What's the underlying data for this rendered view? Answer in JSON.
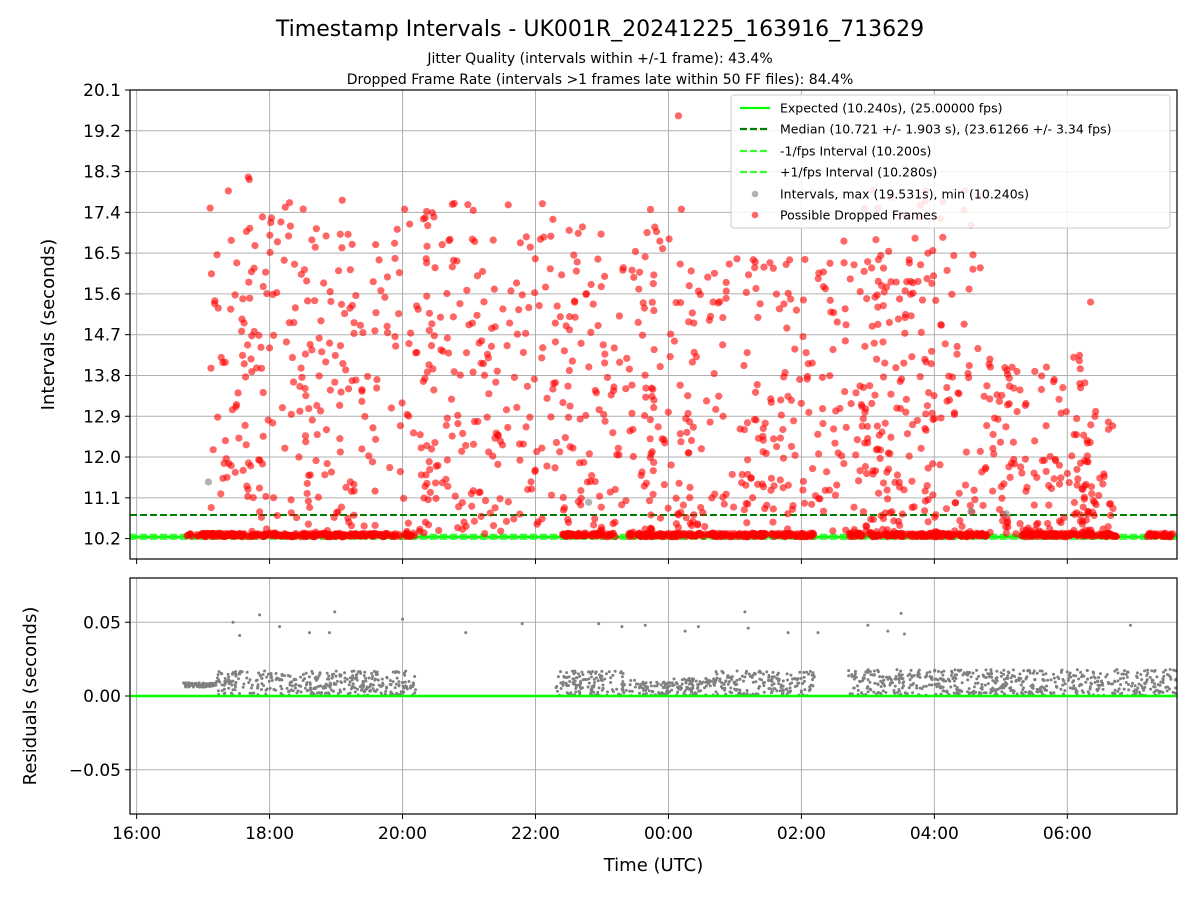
{
  "figure": {
    "title": "Timestamp Intervals - UK001R_20241225_163916_713629",
    "subtitle1": "Jitter Quality (intervals within +/-1 frame): 43.4%",
    "subtitle2": "Dropped Frame Rate (intervals >1 frames late within 50 FF files): 84.4%"
  },
  "colors": {
    "expected": "#00ff00",
    "median": "#008000",
    "fps_bounds": "#33ff33",
    "intervals": "#808080",
    "dropped": "#ff0000",
    "residuals": "#808080",
    "grid": "#b0b0b0"
  },
  "chart_data": [
    {
      "type": "scatter",
      "panel": "top",
      "xlabel": "Time (UTC)",
      "ylabel": "Intervals (seconds)",
      "xlim_hours_since_1600": [
        -0.1,
        15.65
      ],
      "ylim": [
        9.75,
        20.1
      ],
      "yticks": [
        "20.1",
        "19.2",
        "18.3",
        "17.4",
        "16.5",
        "15.6",
        "14.7",
        "13.8",
        "12.9",
        "12.0",
        "11.1",
        "10.2"
      ],
      "grid": true,
      "legend_position": "top-right",
      "legend": [
        {
          "label": "Expected (10.240s), (25.00000 fps)",
          "style": "solid-line",
          "color": "#00ff00"
        },
        {
          "label": "Median (10.721 +/- 1.903 s), (23.61266 +/- 3.34 fps)",
          "style": "dashed-line",
          "color": "#008000"
        },
        {
          "label": "-1/fps Interval (10.200s)",
          "style": "dashed-line",
          "color": "#33ff33"
        },
        {
          "label": "+1/fps Interval (10.280s)",
          "style": "dashed-line",
          "color": "#33ff33"
        },
        {
          "label": "Intervals, max (19.531s), min (10.240s)",
          "style": "marker",
          "color": "#808080"
        },
        {
          "label": "Possible Dropped Frames",
          "style": "marker",
          "color": "#ff0000"
        }
      ],
      "reference_lines": {
        "expected": 10.24,
        "median": 10.721,
        "minus_fps": 10.2,
        "plus_fps": 10.28
      },
      "interval_stats": {
        "max": 19.531,
        "min": 10.24
      },
      "dropped_frame_clusters_hours": [
        {
          "start": 1.1,
          "end": 1.7,
          "ymin": 10.3,
          "ymax": 18.2
        },
        {
          "start": 1.7,
          "end": 4.5,
          "ymin": 10.3,
          "ymax": 17.7
        },
        {
          "start": 4.3,
          "end": 6.4,
          "ymin": 10.3,
          "ymax": 17.6
        },
        {
          "start": 6.4,
          "end": 7.8,
          "ymin": 10.3,
          "ymax": 17.2
        },
        {
          "start": 7.6,
          "end": 8.3,
          "ymin": 10.4,
          "ymax": 18.0
        },
        {
          "start": 8.3,
          "end": 9.9,
          "ymin": 10.3,
          "ymax": 16.5
        },
        {
          "start": 9.9,
          "end": 11.6,
          "ymin": 10.3,
          "ymax": 16.8
        },
        {
          "start": 10.9,
          "end": 12.7,
          "ymin": 10.3,
          "ymax": 17.9
        },
        {
          "start": 12.7,
          "end": 14.3,
          "ymin": 10.3,
          "ymax": 14.3
        },
        {
          "start": 14.2,
          "end": 14.7,
          "ymin": 10.3,
          "ymax": 13.2
        }
      ],
      "notable_points": [
        {
          "x": 8.15,
          "y": 19.53,
          "series": "dropped"
        },
        {
          "x": 14.35,
          "y": 15.42,
          "series": "dropped"
        },
        {
          "x": 1.08,
          "y": 11.45,
          "series": "intervals"
        },
        {
          "x": 6.8,
          "y": 11.0,
          "series": "intervals"
        },
        {
          "x": 12.55,
          "y": 10.8,
          "series": "intervals"
        },
        {
          "x": 13.08,
          "y": 10.75,
          "series": "intervals"
        }
      ]
    },
    {
      "type": "scatter",
      "panel": "bottom",
      "xlabel": "Time (UTC)",
      "ylabel": "Residuals (seconds)",
      "xlim_hours_since_1600": [
        -0.1,
        15.65
      ],
      "ylim": [
        -0.08,
        0.08
      ],
      "yticks": [
        "0.05",
        "0.00",
        "−0.05"
      ],
      "xticks": [
        "16:00",
        "18:00",
        "20:00",
        "22:00",
        "00:00",
        "02:00",
        "04:00",
        "06:00"
      ],
      "grid": true,
      "zero_line": 0.0,
      "residual_clusters_hours": [
        {
          "start": 0.7,
          "end": 1.2,
          "ymin": 0.006,
          "ymax": 0.009
        },
        {
          "start": 1.2,
          "end": 4.2,
          "ymin": 0.0,
          "ymax": 0.017
        },
        {
          "start": 6.3,
          "end": 7.5,
          "ymin": 0.0,
          "ymax": 0.017
        },
        {
          "start": 7.5,
          "end": 8.0,
          "ymin": 0.0,
          "ymax": 0.01
        },
        {
          "start": 8.0,
          "end": 8.7,
          "ymin": 0.0,
          "ymax": 0.012
        },
        {
          "start": 8.7,
          "end": 10.2,
          "ymin": 0.0,
          "ymax": 0.017
        },
        {
          "start": 10.7,
          "end": 12.8,
          "ymin": 0.0,
          "ymax": 0.018
        },
        {
          "start": 12.8,
          "end": 15.65,
          "ymin": 0.0,
          "ymax": 0.018
        }
      ],
      "outliers": [
        {
          "x": 1.45,
          "y": 0.05
        },
        {
          "x": 1.55,
          "y": 0.041
        },
        {
          "x": 1.85,
          "y": 0.055
        },
        {
          "x": 2.15,
          "y": 0.047
        },
        {
          "x": 2.6,
          "y": 0.043
        },
        {
          "x": 2.9,
          "y": 0.043
        },
        {
          "x": 2.98,
          "y": 0.057
        },
        {
          "x": 4.0,
          "y": 0.052
        },
        {
          "x": 4.95,
          "y": 0.043
        },
        {
          "x": 5.8,
          "y": 0.049
        },
        {
          "x": 6.95,
          "y": 0.049
        },
        {
          "x": 7.3,
          "y": 0.047
        },
        {
          "x": 7.65,
          "y": 0.048
        },
        {
          "x": 8.25,
          "y": 0.044
        },
        {
          "x": 8.45,
          "y": 0.047
        },
        {
          "x": 9.15,
          "y": 0.057
        },
        {
          "x": 9.2,
          "y": 0.046
        },
        {
          "x": 9.8,
          "y": 0.043
        },
        {
          "x": 10.25,
          "y": 0.043
        },
        {
          "x": 11.0,
          "y": 0.048
        },
        {
          "x": 11.3,
          "y": 0.044
        },
        {
          "x": 11.5,
          "y": 0.056
        },
        {
          "x": 11.55,
          "y": 0.042
        },
        {
          "x": 14.95,
          "y": 0.048
        }
      ]
    }
  ]
}
